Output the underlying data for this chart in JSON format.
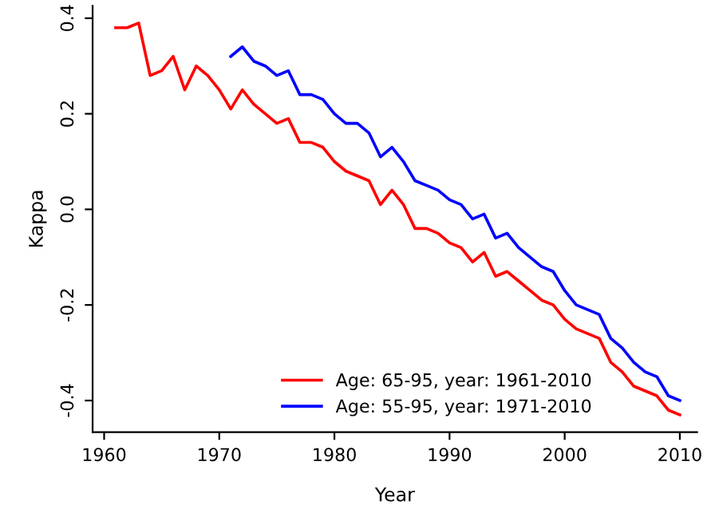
{
  "chart_data": {
    "type": "line",
    "xlabel": "Year",
    "ylabel": "Kappa",
    "xlim": [
      1959,
      2011.5
    ],
    "xticks": [
      1960,
      1970,
      1980,
      1990,
      2000,
      2010
    ],
    "ylim": [
      -0.466,
      0.426
    ],
    "yticks": [
      {
        "value": -0.4,
        "label": "-0.4"
      },
      {
        "value": -0.2,
        "label": "-0.2"
      },
      {
        "value": 0,
        "label": "0.0"
      },
      {
        "value": 0.2,
        "label": "0.2"
      },
      {
        "value": 0.4,
        "label": "0.4"
      }
    ],
    "grid": false,
    "legend": "bottom",
    "marker": "none",
    "line_style": "solid",
    "series": [
      {
        "name": "Age: 65-95, year: 1961-2010",
        "color": "#ff0000",
        "x": [
          1961,
          1962,
          1963,
          1964,
          1965,
          1966,
          1967,
          1968,
          1969,
          1970,
          1971,
          1972,
          1973,
          1974,
          1975,
          1976,
          1977,
          1978,
          1979,
          1980,
          1981,
          1982,
          1983,
          1984,
          1985,
          1986,
          1987,
          1988,
          1989,
          1990,
          1991,
          1992,
          1993,
          1994,
          1995,
          1996,
          1997,
          1998,
          1999,
          2000,
          2001,
          2002,
          2003,
          2004,
          2005,
          2006,
          2007,
          2008,
          2009,
          2010
        ],
        "values": [
          0.38,
          0.38,
          0.39,
          0.28,
          0.29,
          0.32,
          0.25,
          0.3,
          0.28,
          0.25,
          0.21,
          0.25,
          0.22,
          0.2,
          0.18,
          0.19,
          0.14,
          0.14,
          0.13,
          0.1,
          0.08,
          0.07,
          0.06,
          0.01,
          0.04,
          0.01,
          -0.04,
          -0.04,
          -0.05,
          -0.07,
          -0.08,
          -0.11,
          -0.09,
          -0.14,
          -0.13,
          -0.15,
          -0.17,
          -0.19,
          -0.2,
          -0.23,
          -0.25,
          -0.26,
          -0.27,
          -0.32,
          -0.34,
          -0.37,
          -0.38,
          -0.39,
          -0.42,
          -0.43
        ]
      },
      {
        "name": "Age: 55-95, year: 1971-2010",
        "color": "#0000ff",
        "x": [
          1971,
          1972,
          1973,
          1974,
          1975,
          1976,
          1977,
          1978,
          1979,
          1980,
          1981,
          1982,
          1983,
          1984,
          1985,
          1986,
          1987,
          1988,
          1989,
          1990,
          1991,
          1992,
          1993,
          1994,
          1995,
          1996,
          1997,
          1998,
          1999,
          2000,
          2001,
          2002,
          2003,
          2004,
          2005,
          2006,
          2007,
          2008,
          2009,
          2010
        ],
        "values": [
          0.32,
          0.34,
          0.31,
          0.3,
          0.28,
          0.29,
          0.24,
          0.24,
          0.23,
          0.2,
          0.18,
          0.18,
          0.16,
          0.11,
          0.13,
          0.1,
          0.06,
          0.05,
          0.04,
          0.02,
          0.01,
          -0.02,
          -0.01,
          -0.06,
          -0.05,
          -0.08,
          -0.1,
          -0.12,
          -0.13,
          -0.17,
          -0.2,
          -0.21,
          -0.22,
          -0.27,
          -0.29,
          -0.32,
          -0.34,
          -0.35,
          -0.39,
          -0.4
        ]
      }
    ]
  }
}
